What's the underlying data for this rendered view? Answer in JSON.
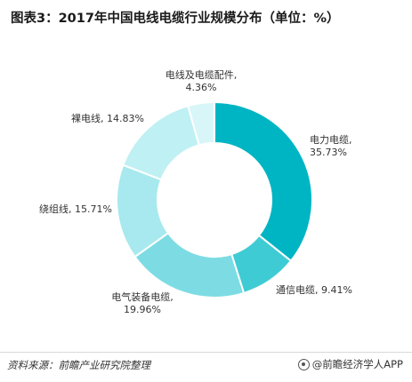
{
  "title": "图表3：2017年中国电线电缆行业规模分布（单位：%）",
  "footer": {
    "source": "资料来源：前瞻产业研究院整理",
    "brand": "@前瞻经济学人APP"
  },
  "chart_data": {
    "type": "pie",
    "variant": "donut",
    "start": "12 o'clock, clockwise",
    "slices": [
      {
        "label": "电力电缆",
        "value_text": "35.73%",
        "value": 35.73,
        "color": "#00b5c3"
      },
      {
        "label": "通信电缆",
        "value_text": "9.41%",
        "value": 9.41,
        "color": "#3fcbd4"
      },
      {
        "label": "电气装备电缆",
        "value_text": "19.96%",
        "value": 19.96,
        "color": "#7ddce3"
      },
      {
        "label": "绕组线",
        "value_text": "15.71%",
        "value": 15.71,
        "color": "#a7e9ee"
      },
      {
        "label": "裸电线",
        "value_text": "14.83%",
        "value": 14.83,
        "color": "#bff0f3"
      },
      {
        "label": "电线及电缆配件",
        "value_text": "4.36%",
        "value": 4.36,
        "color": "#d8f6f8"
      }
    ],
    "legend": "none",
    "labels": "outside, category name and percent"
  }
}
